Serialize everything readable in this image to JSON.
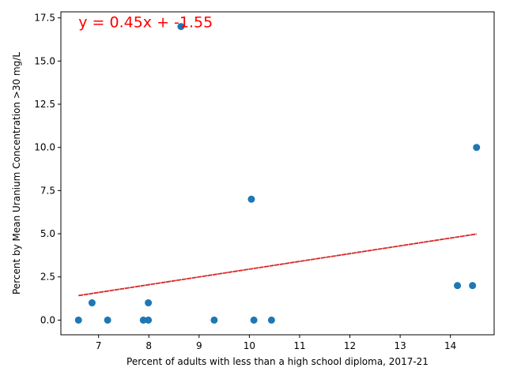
{
  "chart_data": {
    "type": "scatter",
    "xlabel": "Percent of adults with less than a high school diploma, 2017-21",
    "ylabel": "Percent by Mean Uranium Concentration >30 mg/L",
    "xlim": [
      6.25,
      14.87
    ],
    "ylim": [
      -0.85,
      17.85
    ],
    "xticks": [
      7,
      8,
      9,
      10,
      11,
      12,
      13,
      14
    ],
    "xtick_labels": [
      "7",
      "8",
      "9",
      "10",
      "11",
      "12",
      "13",
      "14"
    ],
    "yticks": [
      0,
      2.5,
      5,
      7.5,
      10,
      12.5,
      15,
      17.5
    ],
    "ytick_labels": [
      "0.0",
      "2.5",
      "5.0",
      "7.5",
      "10.0",
      "12.5",
      "15.0",
      "17.5"
    ],
    "grid": false,
    "points": [
      {
        "x": 6.6,
        "y": 0
      },
      {
        "x": 6.87,
        "y": 1
      },
      {
        "x": 7.18,
        "y": 0
      },
      {
        "x": 7.89,
        "y": 0
      },
      {
        "x": 7.99,
        "y": 1
      },
      {
        "x": 7.99,
        "y": 0
      },
      {
        "x": 8.64,
        "y": 17
      },
      {
        "x": 9.3,
        "y": 0
      },
      {
        "x": 10.04,
        "y": 7
      },
      {
        "x": 10.09,
        "y": 0
      },
      {
        "x": 10.44,
        "y": 0
      },
      {
        "x": 14.14,
        "y": 2
      },
      {
        "x": 14.44,
        "y": 2
      },
      {
        "x": 14.52,
        "y": 10
      }
    ],
    "trendline": {
      "x": [
        6.6,
        14.52
      ],
      "slope": 0.45,
      "intercept": -1.55
    },
    "annotation": {
      "text": "y = 0.45x + -1.55",
      "x": 6.6,
      "y": 17
    },
    "colors": {
      "points": "#1f77b4",
      "trendline": "#d62728",
      "annotation": "#ff0000"
    }
  }
}
